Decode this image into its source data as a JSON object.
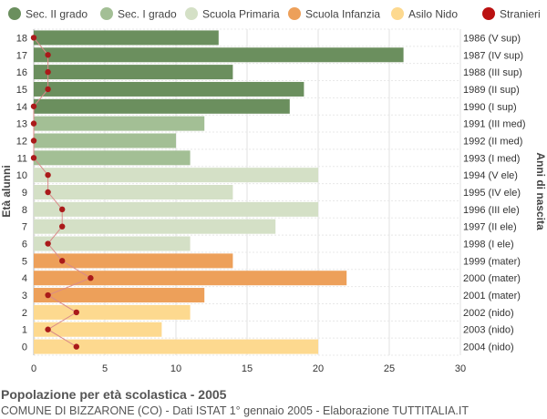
{
  "chart_data": {
    "type": "bar",
    "orientation": "horizontal",
    "title": "Popolazione per età scolastica - 2005",
    "subtitle": "COMUNE DI BIZZARONE (CO) - Dati ISTAT 1° gennaio 2005 - Elaborazione TUTTITALIA.IT",
    "ylabel": "Età alunni",
    "ylabel_right": "Anni di nascita",
    "xlim": [
      0,
      30
    ],
    "x_ticks": [
      0,
      5,
      10,
      15,
      20,
      25,
      30
    ],
    "grid": true,
    "legend_position": "top",
    "legend": [
      {
        "name": "Sec. II grado",
        "color": "#6b8f5e",
        "marker": "circle"
      },
      {
        "name": "Sec. I grado",
        "color": "#a3bf95",
        "marker": "circle"
      },
      {
        "name": "Scuola Primaria",
        "color": "#d4e0c6",
        "marker": "circle"
      },
      {
        "name": "Scuola Infanzia",
        "color": "#eda05a",
        "marker": "circle"
      },
      {
        "name": "Asilo Nido",
        "color": "#fdd98f",
        "marker": "circle"
      },
      {
        "name": "Stranieri",
        "color": "#bb1111",
        "marker": "circle"
      }
    ],
    "categories": [
      18,
      17,
      16,
      15,
      14,
      13,
      12,
      11,
      10,
      9,
      8,
      7,
      6,
      5,
      4,
      3,
      2,
      1,
      0
    ],
    "birth_years": [
      "1986 (V sup)",
      "1987 (IV sup)",
      "1988 (III sup)",
      "1989 (II sup)",
      "1990 (I sup)",
      "1991 (III med)",
      "1992 (II med)",
      "1993 (I med)",
      "1994 (V ele)",
      "1995 (IV ele)",
      "1996 (III ele)",
      "1997 (II ele)",
      "1998 (I ele)",
      "1999 (mater)",
      "2000 (mater)",
      "2001 (mater)",
      "2002 (nido)",
      "2003 (nido)",
      "2004 (nido)"
    ],
    "values": [
      13,
      26,
      14,
      19,
      18,
      12,
      10,
      11,
      20,
      14,
      20,
      17,
      11,
      14,
      22,
      12,
      11,
      9,
      20
    ],
    "groups": [
      "Sec. II grado",
      "Sec. II grado",
      "Sec. II grado",
      "Sec. II grado",
      "Sec. II grado",
      "Sec. I grado",
      "Sec. I grado",
      "Sec. I grado",
      "Scuola Primaria",
      "Scuola Primaria",
      "Scuola Primaria",
      "Scuola Primaria",
      "Scuola Primaria",
      "Scuola Infanzia",
      "Scuola Infanzia",
      "Scuola Infanzia",
      "Asilo Nido",
      "Asilo Nido",
      "Asilo Nido"
    ],
    "series": [
      {
        "name": "Stranieri",
        "type": "line",
        "color": "#bb1111",
        "values": [
          0,
          1,
          1,
          1,
          0,
          0,
          0,
          0,
          1,
          1,
          2,
          2,
          1,
          2,
          4,
          1,
          3,
          1,
          3
        ]
      }
    ]
  }
}
